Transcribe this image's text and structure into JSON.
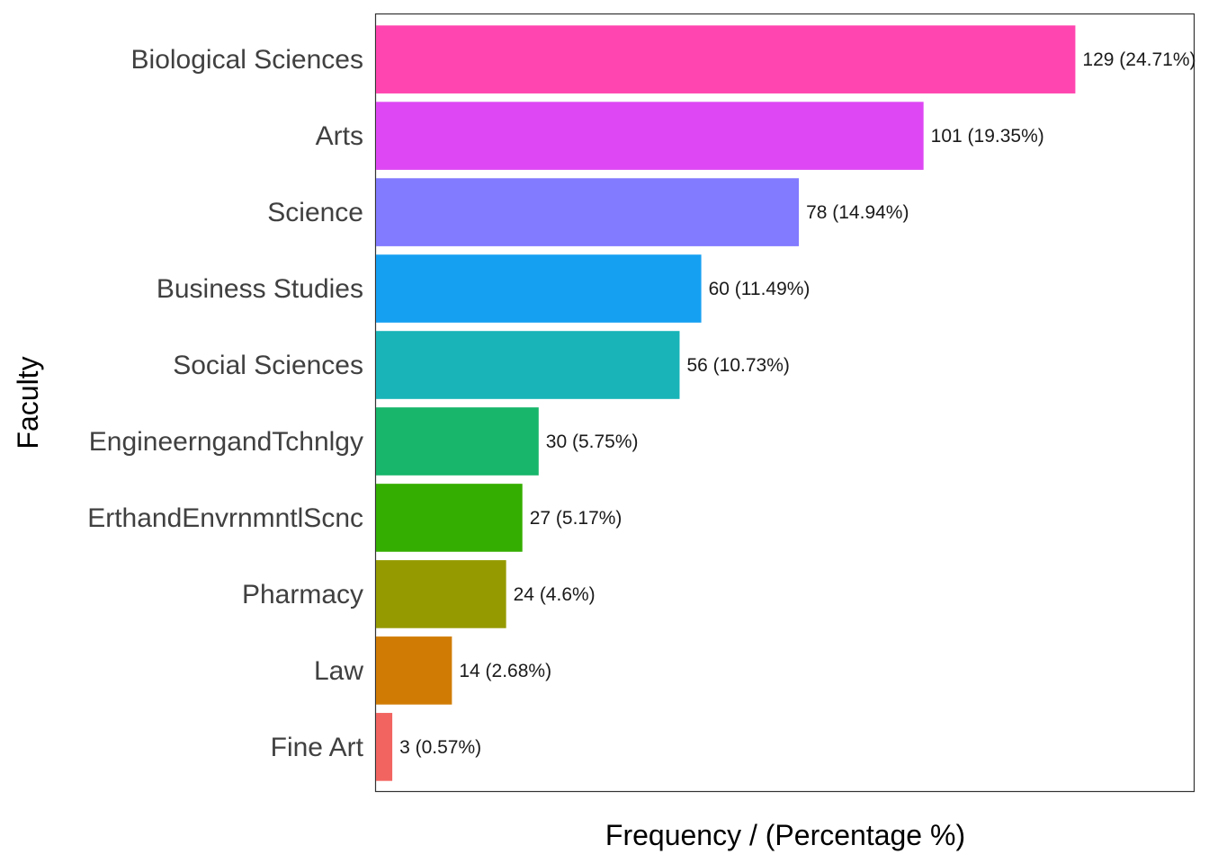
{
  "chart_data": {
    "type": "bar",
    "orientation": "horizontal",
    "xlabel": "Frequency / (Percentage %)",
    "ylabel": "Faculty",
    "xlim": [
      0,
      151
    ],
    "grid": false,
    "legend": "none",
    "categories": [
      "Biological Sciences",
      "Arts",
      "Science",
      "Business Studies",
      "Social Sciences",
      "EngineerngandTchnlgy",
      "ErthandEnvrnmntlScnc",
      "Pharmacy",
      "Law",
      "Fine Art"
    ],
    "values": [
      129,
      101,
      78,
      60,
      56,
      30,
      27,
      24,
      14,
      3
    ],
    "value_labels": [
      "129 (24.71%)",
      "101 (19.35%)",
      "78 (14.94%)",
      "60 (11.49%)",
      "56 (10.73%)",
      "30 (5.75%)",
      "27 (5.17%)",
      "24 (4.6%)",
      "14 (2.68%)",
      "3 (0.57%)"
    ],
    "colors": [
      "#FF45AF",
      "#DE48F4",
      "#827AFF",
      "#16A0F2",
      "#18B4B8",
      "#17B66A",
      "#34AE00",
      "#959A00",
      "#D07C04",
      "#F26460"
    ]
  }
}
